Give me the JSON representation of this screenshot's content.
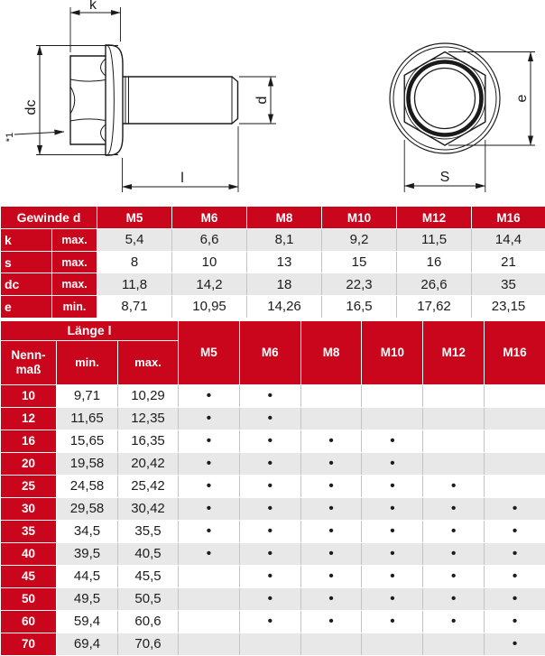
{
  "colors": {
    "header_red": "#C9061C",
    "row_shaded": "#E8E8E8",
    "row_plain": "#FFFFFF",
    "grid_line": "#C4C4C4",
    "drawing_line": "#1A1A1A"
  },
  "drawing": {
    "side_view": {
      "head_height_label": "k",
      "flange_diameter_label": "dc",
      "thread_diameter_label": "d",
      "length_label": "l",
      "footnote_label": "*1"
    },
    "front_view": {
      "corner_width_label": "e",
      "across_flats_label": "S"
    }
  },
  "dimensions_table": {
    "corner_label": "Gewinde d",
    "columns": [
      "M5",
      "M6",
      "M8",
      "M10",
      "M12",
      "M16"
    ],
    "rows": [
      {
        "label": "k",
        "qualifier": "max.",
        "values": [
          "5,4",
          "6,6",
          "8,1",
          "9,2",
          "11,5",
          "14,4"
        ]
      },
      {
        "label": "s",
        "qualifier": "max.",
        "values": [
          "8",
          "10",
          "13",
          "15",
          "16",
          "21"
        ]
      },
      {
        "label": "dc",
        "qualifier": "max.",
        "values": [
          "11,8",
          "14,2",
          "18",
          "22,3",
          "26,6",
          "35"
        ]
      },
      {
        "label": "e",
        "qualifier": "min.",
        "values": [
          "8,71",
          "10,95",
          "14,26",
          "16,5",
          "17,62",
          "23,15"
        ]
      }
    ]
  },
  "length_table": {
    "group_label": "Länge l",
    "nominal_label_line1": "Nenn-",
    "nominal_label_line2": "maß",
    "min_label": "min.",
    "max_label": "max.",
    "columns": [
      "M5",
      "M6",
      "M8",
      "M10",
      "M12",
      "M16"
    ],
    "rows": [
      {
        "nominal": "10",
        "min": "9,71",
        "max": "10,29",
        "available": [
          "•",
          "•",
          "",
          "",
          "",
          ""
        ]
      },
      {
        "nominal": "12",
        "min": "11,65",
        "max": "12,35",
        "available": [
          "•",
          "•",
          "",
          "",
          "",
          ""
        ]
      },
      {
        "nominal": "16",
        "min": "15,65",
        "max": "16,35",
        "available": [
          "•",
          "•",
          "•",
          "•",
          "",
          ""
        ]
      },
      {
        "nominal": "20",
        "min": "19,58",
        "max": "20,42",
        "available": [
          "•",
          "•",
          "•",
          "•",
          "",
          ""
        ]
      },
      {
        "nominal": "25",
        "min": "24,58",
        "max": "25,42",
        "available": [
          "•",
          "•",
          "•",
          "•",
          "•",
          ""
        ]
      },
      {
        "nominal": "30",
        "min": "29,58",
        "max": "30,42",
        "available": [
          "•",
          "•",
          "•",
          "•",
          "•",
          "•"
        ]
      },
      {
        "nominal": "35",
        "min": "34,5",
        "max": "35,5",
        "available": [
          "•",
          "•",
          "•",
          "•",
          "•",
          "•"
        ]
      },
      {
        "nominal": "40",
        "min": "39,5",
        "max": "40,5",
        "available": [
          "•",
          "•",
          "•",
          "•",
          "•",
          "•"
        ]
      },
      {
        "nominal": "45",
        "min": "44,5",
        "max": "45,5",
        "available": [
          "",
          "•",
          "•",
          "•",
          "•",
          "•"
        ]
      },
      {
        "nominal": "50",
        "min": "49,5",
        "max": "50,5",
        "available": [
          "",
          "•",
          "•",
          "•",
          "•",
          "•"
        ]
      },
      {
        "nominal": "60",
        "min": "59,4",
        "max": "60,6",
        "available": [
          "",
          "•",
          "•",
          "•",
          "•",
          "•"
        ]
      },
      {
        "nominal": "70",
        "min": "69,4",
        "max": "70,6",
        "available": [
          "",
          "",
          "",
          "",
          "",
          "•"
        ]
      }
    ]
  }
}
